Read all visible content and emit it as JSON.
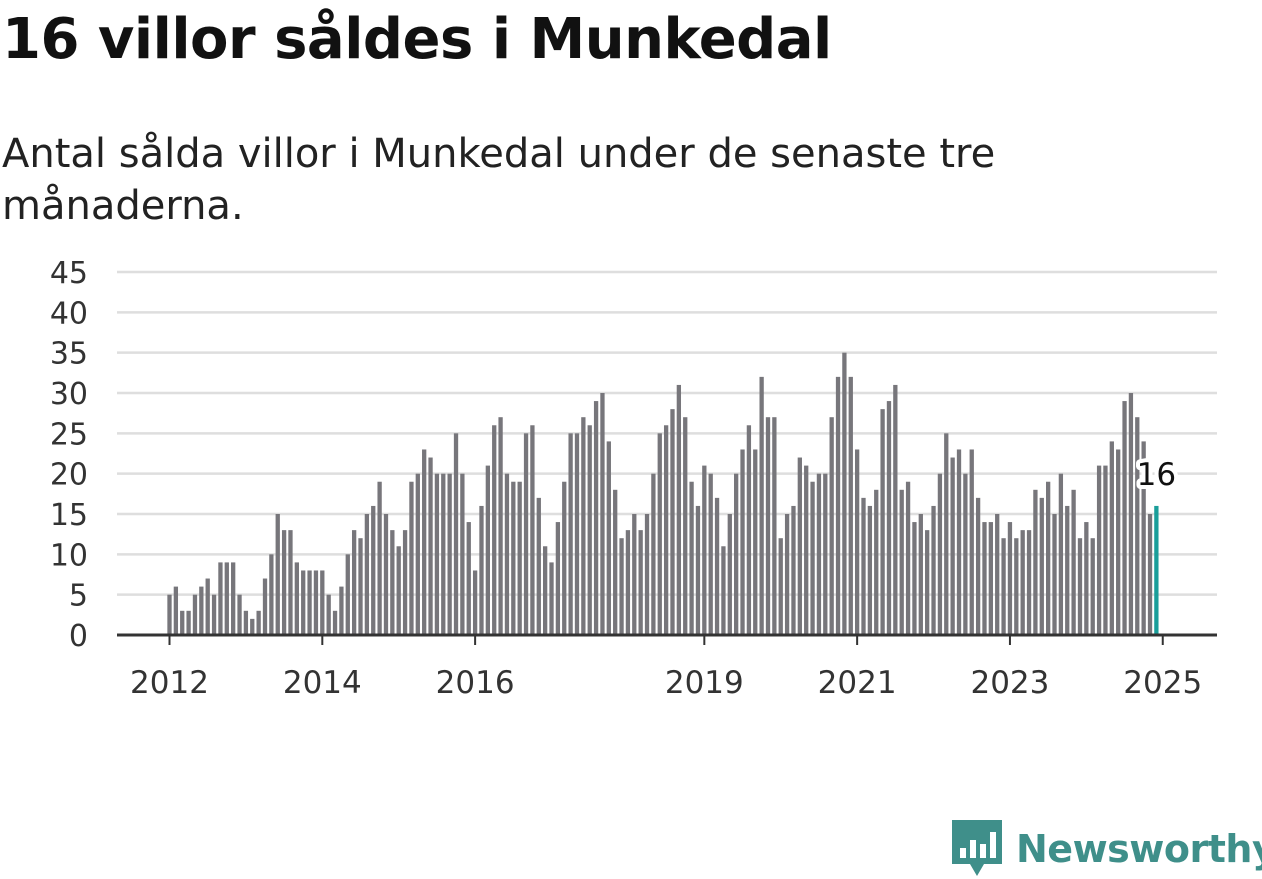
{
  "title": "16 villor såldes i Munkedal",
  "subtitle": "Antal sålda villor i Munkedal under de senaste tre månaderna.",
  "brand": {
    "name": "Newsworthy",
    "icon": "newsworthy-logo-icon",
    "color": "#3f8f8a"
  },
  "colors": {
    "bar": "#77767b",
    "highlight": "#1a9e9a",
    "grid": "#dedede",
    "axis": "#333333"
  },
  "chart_data": {
    "type": "bar",
    "title": "16 villor såldes i Munkedal",
    "subtitle": "Antal sålda villor i Munkedal under de senaste tre månaderna.",
    "start": "2012-01",
    "frequency": "monthly",
    "ylim": [
      0,
      45
    ],
    "yticks": [
      "0",
      "5",
      "10",
      "15",
      "20",
      "25",
      "30",
      "35",
      "40",
      "45"
    ],
    "xticks": [
      {
        "label": "2012",
        "month": "2012-01"
      },
      {
        "label": "2014",
        "month": "2014-01"
      },
      {
        "label": "2016",
        "month": "2016-01"
      },
      {
        "label": "2019",
        "month": "2019-01"
      },
      {
        "label": "2021",
        "month": "2021-01"
      },
      {
        "label": "2023",
        "month": "2023-01"
      },
      {
        "label": "2025",
        "month": "2025-01"
      }
    ],
    "grid": true,
    "highlight_label": "16",
    "values": [
      5,
      6,
      3,
      3,
      5,
      6,
      7,
      5,
      9,
      9,
      9,
      5,
      3,
      2,
      3,
      7,
      10,
      15,
      13,
      13,
      9,
      8,
      8,
      8,
      8,
      5,
      3,
      6,
      10,
      13,
      12,
      15,
      16,
      19,
      15,
      13,
      11,
      13,
      19,
      20,
      23,
      22,
      20,
      20,
      20,
      25,
      20,
      14,
      8,
      16,
      21,
      26,
      27,
      20,
      19,
      19,
      25,
      26,
      17,
      11,
      9,
      14,
      19,
      25,
      25,
      27,
      26,
      29,
      30,
      24,
      18,
      12,
      13,
      15,
      13,
      15,
      20,
      25,
      26,
      28,
      31,
      27,
      19,
      16,
      21,
      20,
      17,
      11,
      15,
      20,
      23,
      26,
      23,
      32,
      27,
      27,
      12,
      15,
      16,
      22,
      21,
      19,
      20,
      20,
      27,
      32,
      35,
      32,
      23,
      17,
      16,
      18,
      28,
      29,
      31,
      18,
      19,
      14,
      15,
      13,
      16,
      20,
      25,
      22,
      23,
      20,
      23,
      17,
      14,
      14,
      15,
      12,
      14,
      12,
      13,
      13,
      18,
      17,
      19,
      15,
      20,
      16,
      18,
      12,
      14,
      12,
      21,
      21,
      24,
      23,
      29,
      30,
      27,
      24,
      15,
      16
    ]
  }
}
